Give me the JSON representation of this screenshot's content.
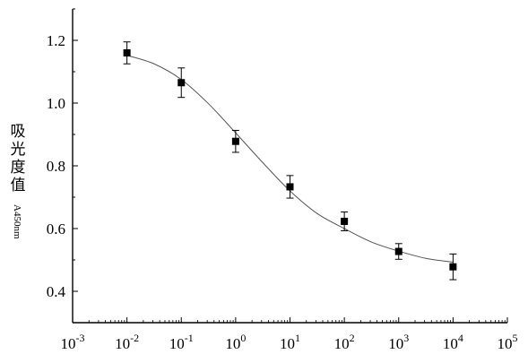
{
  "chart_data": {
    "type": "scatter",
    "title": "",
    "xlabel": "",
    "ylabel": "吸光度值",
    "ylabel_subscript": "A450nm",
    "x_scale": "log",
    "xlim": [
      0.001,
      100000
    ],
    "ylim": [
      0.3,
      1.3
    ],
    "x_ticks": [
      {
        "base": "10",
        "exp": "-3"
      },
      {
        "base": "10",
        "exp": "-2"
      },
      {
        "base": "10",
        "exp": "-1"
      },
      {
        "base": "10",
        "exp": "0"
      },
      {
        "base": "10",
        "exp": "1"
      },
      {
        "base": "10",
        "exp": "2"
      },
      {
        "base": "10",
        "exp": "3"
      },
      {
        "base": "10",
        "exp": "4"
      },
      {
        "base": "10",
        "exp": "5"
      }
    ],
    "y_ticks": [
      "0.4",
      "0.6",
      "0.8",
      "1.0",
      "1.2"
    ],
    "points": [
      {
        "x": 0.01,
        "y": 1.16,
        "err": 0.035
      },
      {
        "x": 0.1,
        "y": 1.065,
        "err": 0.047
      },
      {
        "x": 1,
        "y": 0.878,
        "err": 0.035
      },
      {
        "x": 10,
        "y": 0.733,
        "err": 0.036
      },
      {
        "x": 100,
        "y": 0.623,
        "err": 0.03
      },
      {
        "x": 1000,
        "y": 0.527,
        "err": 0.025
      },
      {
        "x": 10000,
        "y": 0.478,
        "err": 0.041
      }
    ],
    "fit_curve": [
      {
        "x": 0.01,
        "y": 1.152
      },
      {
        "x": 0.0316,
        "y": 1.125
      },
      {
        "x": 0.1,
        "y": 1.075
      },
      {
        "x": 0.316,
        "y": 0.998
      },
      {
        "x": 1,
        "y": 0.905
      },
      {
        "x": 3.16,
        "y": 0.81
      },
      {
        "x": 10,
        "y": 0.72
      },
      {
        "x": 31.6,
        "y": 0.648
      },
      {
        "x": 100,
        "y": 0.6
      },
      {
        "x": 316,
        "y": 0.557
      },
      {
        "x": 1000,
        "y": 0.528
      },
      {
        "x": 3162,
        "y": 0.505
      },
      {
        "x": 10000,
        "y": 0.493
      }
    ],
    "grid": false,
    "legend": "none"
  }
}
